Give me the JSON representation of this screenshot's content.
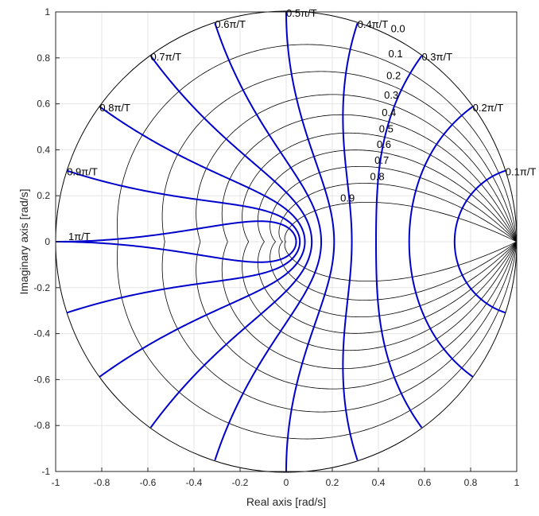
{
  "chart_data": {
    "type": "line",
    "title": "",
    "xlabel": "Real axis [rad/s]",
    "ylabel": "Imaginary axis [rad/s]",
    "xlim": [
      -1,
      1
    ],
    "ylim": [
      -1,
      1
    ],
    "grid": true,
    "xticks": [
      "-1",
      "-0.8",
      "-0.6",
      "-0.4",
      "-0.2",
      "0",
      "0.2",
      "0.4",
      "0.6",
      "0.8",
      "1"
    ],
    "yticks": [
      "1",
      "0.8",
      "0.6",
      "0.4",
      "0.2",
      "0",
      "-0.2",
      "-0.4",
      "-0.6",
      "-0.8",
      "-1"
    ],
    "xtick_values": [
      -1,
      -0.8,
      -0.6,
      -0.4,
      -0.2,
      0,
      0.2,
      0.4,
      0.6,
      0.8,
      1
    ],
    "ytick_values": [
      1,
      0.8,
      0.6,
      0.4,
      0.2,
      0,
      -0.2,
      -0.4,
      -0.6,
      -0.8,
      -1
    ],
    "damping_ratios": [
      0,
      0.1,
      0.2,
      0.3,
      0.4,
      0.5,
      0.6,
      0.7,
      0.8,
      0.9
    ],
    "damping_labels": [
      "0.0",
      "0.1",
      "0.2",
      "0.3",
      "0.4",
      "0.5",
      "0.6",
      "0.7",
      "0.8",
      "0.9"
    ],
    "natural_frequency_multiples": [
      0.1,
      0.2,
      0.3,
      0.4,
      0.5,
      0.6,
      0.7,
      0.8,
      0.9,
      1.0
    ],
    "frequency_labels": [
      "0.1π/T",
      "0.2π/T",
      "0.3π/T",
      "0.4π/T",
      "0.5π/T",
      "0.6π/T",
      "0.7π/T",
      "0.8π/T",
      "0.9π/T",
      "1π/T"
    ],
    "colors": {
      "frequency_curves": "#0000cc",
      "damping_curves": "#000000",
      "grid": "#e5e5e5",
      "axes": "#262626"
    }
  }
}
